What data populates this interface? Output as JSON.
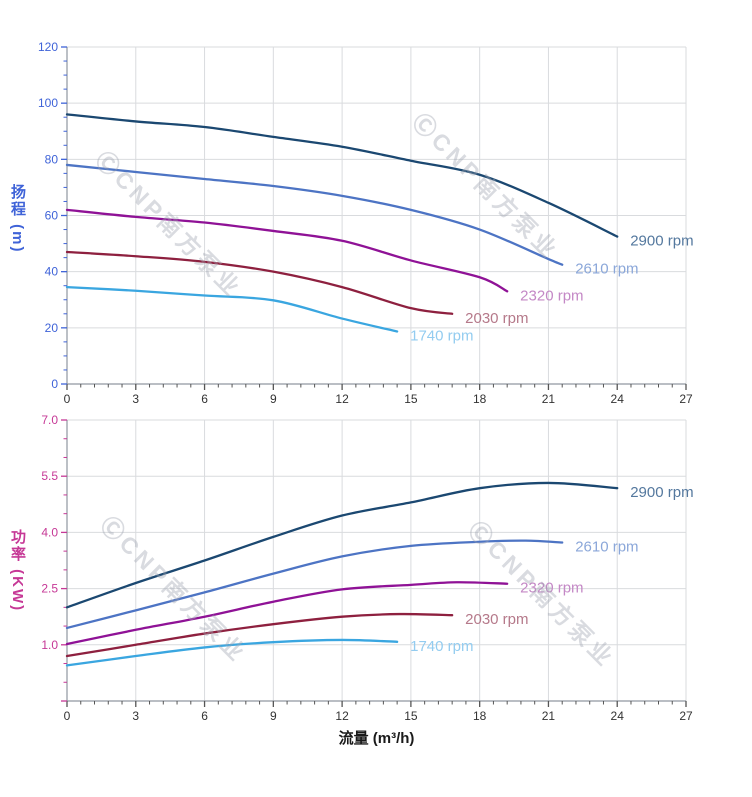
{
  "watermark": {
    "text": "ⒸCNP南方泵业"
  },
  "style": {
    "grid_color": "#d9dbde",
    "axis_color": "#9097a0",
    "x_tick_color": "#555555",
    "x_tick_label_color": "#333333",
    "head_axis_color": "#3f63d8",
    "power_axis_color": "#c63896"
  },
  "chart_data": [
    {
      "type": "line",
      "title": "",
      "xlabel": "流量 (m³/h)",
      "ylabel": "扬程 (m)",
      "xlim": [
        0,
        27
      ],
      "ylim": [
        0,
        120
      ],
      "grid": true,
      "legend_position": "curve-end-labels",
      "x_major_ticks": [
        0,
        3,
        6,
        9,
        12,
        15,
        18,
        21,
        24,
        27
      ],
      "x_tick_labels": [
        "0",
        "3",
        "6",
        "9",
        "12",
        "15",
        "18",
        "21",
        "24",
        "27"
      ],
      "x_minor_step": 0.6,
      "y_major_ticks": [
        0,
        20,
        40,
        60,
        80,
        100,
        120
      ],
      "y_tick_labels": [
        "0",
        "20",
        "40",
        "60",
        "80",
        "100",
        "120"
      ],
      "y_minor_step": 5,
      "y_axis_color": "#3f63d8",
      "series": [
        {
          "name": "2900 rpm",
          "color": "#1b4871",
          "label_color": "#54789e",
          "points": [
            [
              0,
              96
            ],
            [
              3,
              93.5
            ],
            [
              6,
              91.5
            ],
            [
              9,
              88
            ],
            [
              12,
              84.5
            ],
            [
              15,
              79.5
            ],
            [
              18,
              74.5
            ],
            [
              21,
              64.5
            ],
            [
              24,
              52.5
            ]
          ]
        },
        {
          "name": "2610 rpm",
          "color": "#4d74c4",
          "label_color": "#8ba7d9",
          "points": [
            [
              0,
              78
            ],
            [
              3,
              75.5
            ],
            [
              6,
              73
            ],
            [
              9,
              70.5
            ],
            [
              12,
              67
            ],
            [
              15,
              62
            ],
            [
              18,
              55
            ],
            [
              21,
              44.5
            ],
            [
              21.6,
              42.5
            ]
          ]
        },
        {
          "name": "2320 rpm",
          "color": "#8f1296",
          "label_color": "#c488c6",
          "points": [
            [
              0,
              62
            ],
            [
              3,
              59.5
            ],
            [
              6,
              57.5
            ],
            [
              9,
              54.5
            ],
            [
              12,
              51
            ],
            [
              15,
              44
            ],
            [
              18,
              38
            ],
            [
              19.2,
              33
            ]
          ]
        },
        {
          "name": "2030 rpm",
          "color": "#8e203f",
          "label_color": "#b5798a",
          "points": [
            [
              0,
              47
            ],
            [
              3,
              45.5
            ],
            [
              6,
              43.5
            ],
            [
              9,
              40
            ],
            [
              12,
              34.5
            ],
            [
              15,
              27
            ],
            [
              16.8,
              25
            ]
          ]
        },
        {
          "name": "1740 rpm",
          "color": "#3aa6e0",
          "label_color": "#93ccf0",
          "points": [
            [
              0,
              34.5
            ],
            [
              3,
              33.2
            ],
            [
              6,
              31.5
            ],
            [
              9,
              29.8
            ],
            [
              12,
              23.3
            ],
            [
              14.4,
              18.7
            ]
          ]
        }
      ]
    },
    {
      "type": "line",
      "title": "",
      "xlabel": "流量 (m³/h)",
      "ylabel": "功率 (KW)",
      "xlim": [
        0,
        27
      ],
      "ylim": [
        -0.5,
        7.0
      ],
      "grid": true,
      "legend_position": "curve-end-labels",
      "x_major_ticks": [
        0,
        3,
        6,
        9,
        12,
        15,
        18,
        21,
        24,
        27
      ],
      "x_tick_labels": [
        "0",
        "3",
        "6",
        "9",
        "12",
        "15",
        "18",
        "21",
        "24",
        "27"
      ],
      "x_minor_step": 0.6,
      "y_major_ticks": [
        -0.5,
        1.0,
        2.5,
        4.0,
        5.5,
        7.0
      ],
      "y_tick_labels": [
        "",
        "1.0",
        "2.5",
        "4.0",
        "5.5",
        "7.0"
      ],
      "y_minor_step": 0.5,
      "y_axis_color": "#c63896",
      "series": [
        {
          "name": "2900 rpm",
          "color": "#1b4871",
          "label_color": "#54789e",
          "points": [
            [
              0,
              2.0
            ],
            [
              3,
              2.65
            ],
            [
              6,
              3.25
            ],
            [
              9,
              3.88
            ],
            [
              12,
              4.45
            ],
            [
              15,
              4.8
            ],
            [
              18,
              5.18
            ],
            [
              21,
              5.32
            ],
            [
              24,
              5.18
            ]
          ]
        },
        {
          "name": "2610 rpm",
          "color": "#4d74c4",
          "label_color": "#8ba7d9",
          "points": [
            [
              0,
              1.45
            ],
            [
              3,
              1.92
            ],
            [
              6,
              2.4
            ],
            [
              9,
              2.9
            ],
            [
              12,
              3.36
            ],
            [
              15,
              3.64
            ],
            [
              18,
              3.75
            ],
            [
              20,
              3.78
            ],
            [
              21.6,
              3.73
            ]
          ]
        },
        {
          "name": "2320 rpm",
          "color": "#8f1296",
          "label_color": "#c488c6",
          "points": [
            [
              0,
              1.02
            ],
            [
              3,
              1.4
            ],
            [
              6,
              1.75
            ],
            [
              9,
              2.15
            ],
            [
              12,
              2.48
            ],
            [
              15,
              2.6
            ],
            [
              17,
              2.67
            ],
            [
              19.2,
              2.63
            ]
          ]
        },
        {
          "name": "2030 rpm",
          "color": "#8e203f",
          "label_color": "#b5798a",
          "points": [
            [
              0,
              0.7
            ],
            [
              3,
              1.0
            ],
            [
              6,
              1.3
            ],
            [
              9,
              1.55
            ],
            [
              12,
              1.75
            ],
            [
              14.5,
              1.82
            ],
            [
              16.8,
              1.79
            ]
          ]
        },
        {
          "name": "1740 rpm",
          "color": "#3aa6e0",
          "label_color": "#93ccf0",
          "points": [
            [
              0,
              0.45
            ],
            [
              3,
              0.7
            ],
            [
              6,
              0.93
            ],
            [
              9,
              1.07
            ],
            [
              12,
              1.13
            ],
            [
              14.4,
              1.08
            ]
          ]
        }
      ]
    }
  ]
}
